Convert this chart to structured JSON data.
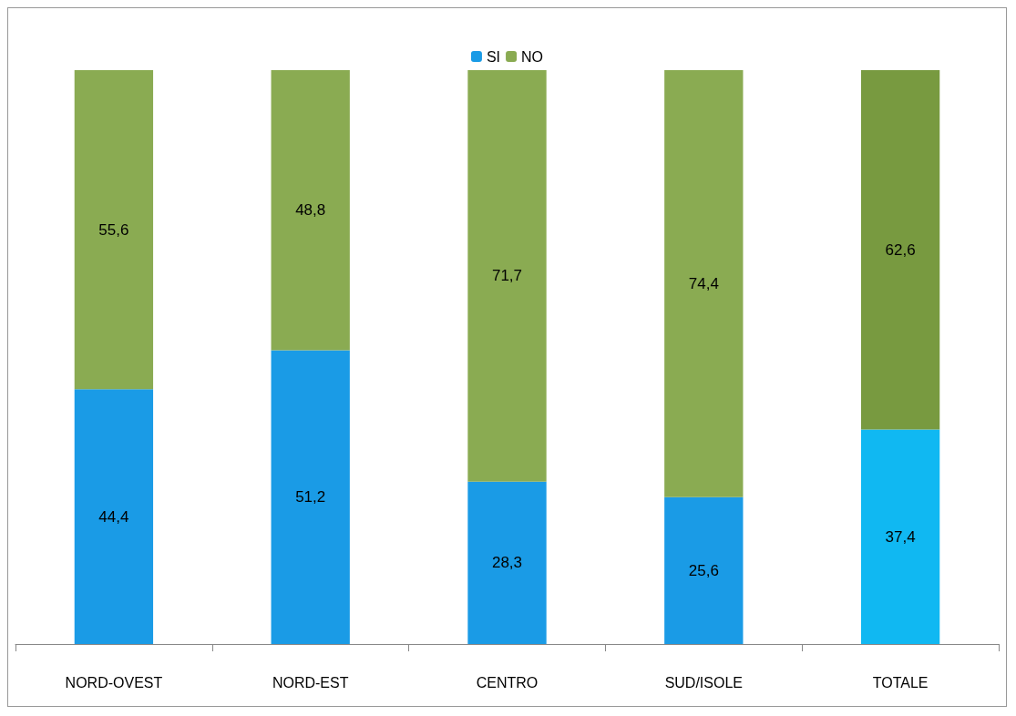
{
  "chart_data": {
    "type": "bar",
    "stacked": true,
    "categories": [
      "NORD-OVEST",
      "NORD-EST",
      "CENTRO",
      "SUD/ISOLE",
      "TOTALE"
    ],
    "series": [
      {
        "name": "SI",
        "color": "#1a9be6",
        "colors": [
          "#1a9be6",
          "#1a9be6",
          "#1a9be6",
          "#1a9be6",
          "#10b8f2"
        ],
        "values": [
          44.4,
          51.2,
          28.3,
          25.6,
          37.4
        ],
        "value_labels": [
          "44,4",
          "51,2",
          "28,3",
          "25,6",
          "37,4"
        ]
      },
      {
        "name": "NO",
        "color": "#8aab52",
        "colors": [
          "#8aab52",
          "#8aab52",
          "#8aab52",
          "#8aab52",
          "#789a40"
        ],
        "values": [
          55.6,
          48.8,
          71.7,
          74.4,
          62.6
        ],
        "value_labels": [
          "55,6",
          "48,8",
          "71,7",
          "74,4",
          "62,6"
        ]
      }
    ],
    "legend": "top",
    "grid": false
  }
}
